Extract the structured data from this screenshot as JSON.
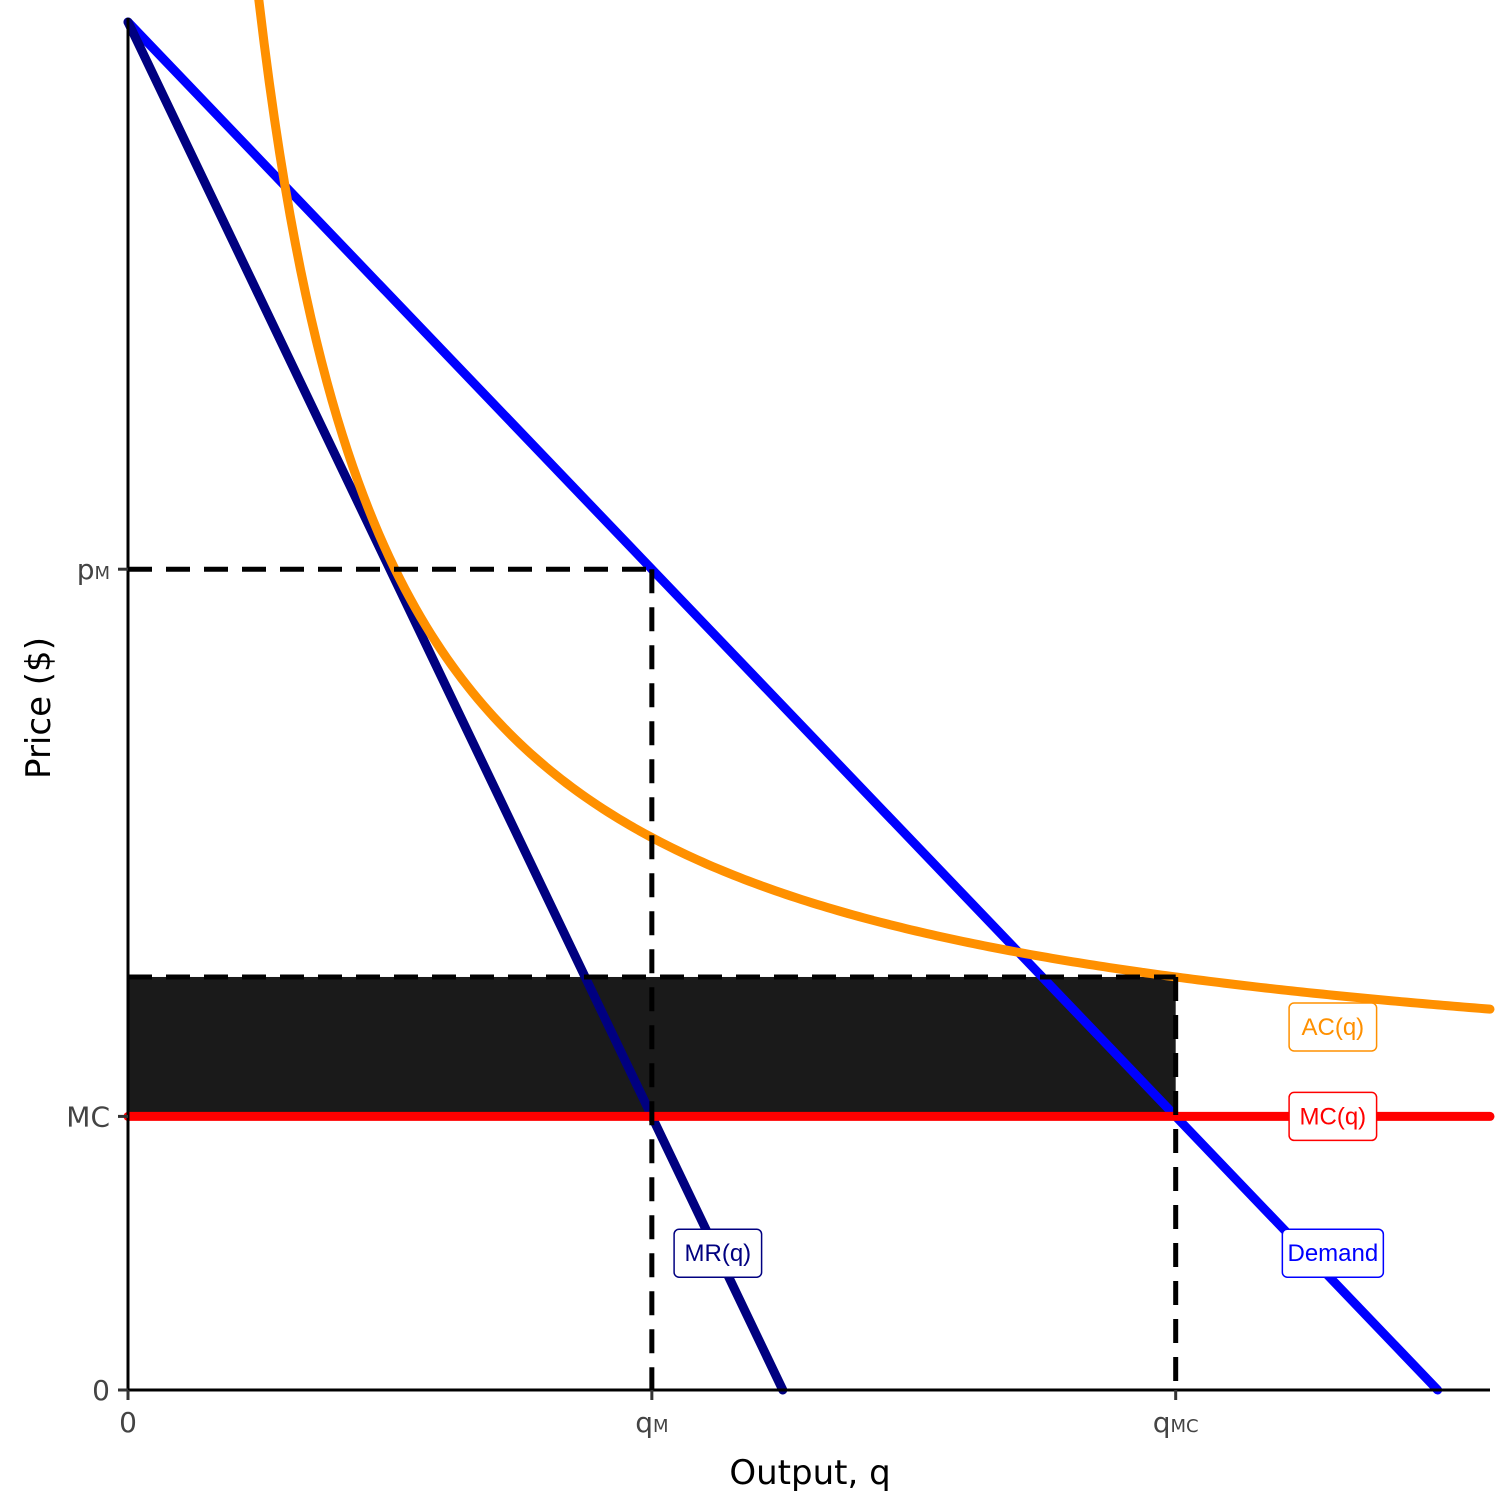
{
  "chart_data": {
    "type": "line",
    "title": "",
    "xlabel": "Output, q",
    "ylabel": "Price ($)",
    "xlim": [
      0,
      13
    ],
    "ylim": [
      0,
      13
    ],
    "grid": false,
    "legend": "none",
    "x_ticks": [
      {
        "value": 0,
        "label": "0",
        "sub": ""
      },
      {
        "value": 5,
        "label": "q",
        "sub": "M"
      },
      {
        "value": 10,
        "label": "q",
        "sub": "MC"
      }
    ],
    "y_ticks": [
      {
        "value": 0,
        "label": "0",
        "sub": ""
      },
      {
        "value": 2.6,
        "label": "MC",
        "sub": ""
      },
      {
        "value": 7.8,
        "label": "p",
        "sub": "M"
      }
    ],
    "series": [
      {
        "name": "Demand",
        "label": "Demand",
        "color": "#0000ff",
        "kind": "line",
        "points": [
          [
            0,
            13
          ],
          [
            12.5,
            0
          ]
        ]
      },
      {
        "name": "MR(q)",
        "label": "MR(q)",
        "color": "#000080",
        "kind": "line",
        "points": [
          [
            0,
            13
          ],
          [
            6.25,
            0
          ]
        ]
      },
      {
        "name": "MC(q)",
        "label": "MC(q)",
        "color": "#ff0000",
        "kind": "line",
        "points": [
          [
            0,
            2.6
          ],
          [
            13,
            2.6
          ]
        ]
      },
      {
        "name": "AC(q)",
        "label": "AC(q)",
        "color": "#ff9000",
        "kind": "curve",
        "fixed_cost": 13.25,
        "marginal_cost": 2.6,
        "x_range": [
          1.05,
          13
        ]
      }
    ],
    "shaded_area": {
      "x": [
        0,
        10
      ],
      "y": [
        2.6,
        3.925
      ],
      "color": "#1a1a1a"
    },
    "reference_lines": [
      {
        "points": [
          [
            0,
            7.8
          ],
          [
            5,
            7.8
          ]
        ]
      },
      {
        "points": [
          [
            5,
            7.8
          ],
          [
            5,
            0
          ]
        ]
      },
      {
        "points": [
          [
            0,
            3.925
          ],
          [
            10,
            3.925
          ]
        ]
      },
      {
        "points": [
          [
            10,
            3.925
          ],
          [
            10,
            0
          ]
        ]
      }
    ],
    "annotations": [
      {
        "text": "AC(q)",
        "x": 11.5,
        "y": 3.45,
        "color": "#ff9000"
      },
      {
        "text": "MC(q)",
        "x": 11.5,
        "y": 2.6,
        "color": "#ff0000"
      },
      {
        "text": "MR(q)",
        "x": 5.63,
        "y": 1.3,
        "color": "#000080"
      },
      {
        "text": "Demand",
        "x": 11.5,
        "y": 1.3,
        "color": "#0000ff"
      }
    ]
  }
}
